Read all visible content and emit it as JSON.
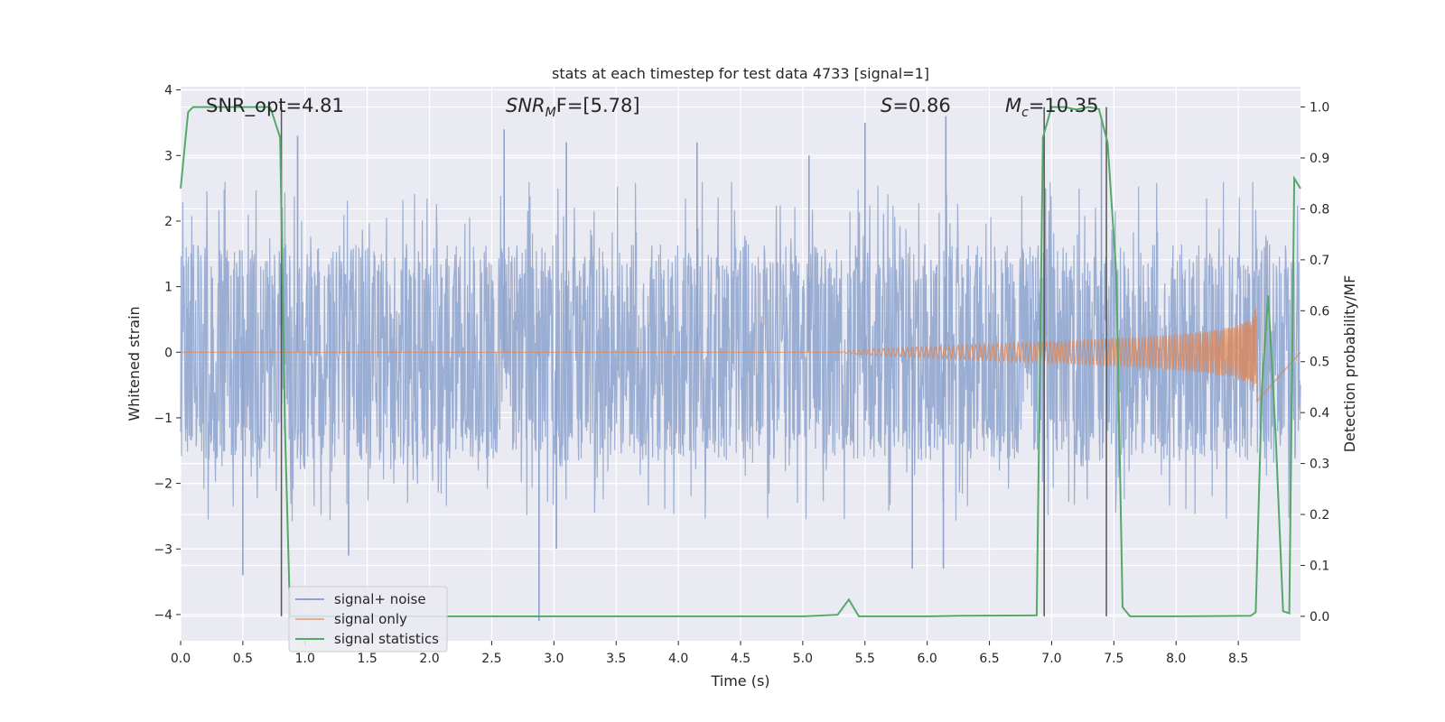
{
  "chart_data": {
    "type": "line",
    "title": "stats at each timestep for test data 4733 [signal=1]",
    "xlabel": "Time (s)",
    "ylabel": "Whitened strain",
    "y2label": "Detection probability/MF",
    "xlim": [
      0,
      9.0
    ],
    "ylim": [
      -4.4,
      4.05
    ],
    "y2lim": [
      -0.048,
      1.04
    ],
    "x_ticks": [
      "0.0",
      "0.5",
      "1.0",
      "1.5",
      "2.0",
      "2.5",
      "3.0",
      "3.5",
      "4.0",
      "4.5",
      "5.0",
      "5.5",
      "6.0",
      "6.5",
      "7.0",
      "7.5",
      "8.0",
      "8.5"
    ],
    "y_ticks": [
      "4",
      "3",
      "2",
      "1",
      "0",
      "−1",
      "−2",
      "−3",
      "−4"
    ],
    "y2_ticks": [
      "1.0",
      "0.9",
      "0.8",
      "0.7",
      "0.6",
      "0.5",
      "0.4",
      "0.3",
      "0.2",
      "0.1",
      "0.0"
    ],
    "grid": true,
    "legend_position": "lower-left",
    "annotations": {
      "snr_opt": "SNR_opt=4.81",
      "snr_mf_main": "SNR",
      "snr_mf_sub": "M",
      "snr_mf_rest": "F=[5.78]",
      "s_var": "S",
      "s_rest": "=0.86",
      "mc_var": "M",
      "mc_sub": "c",
      "mc_rest": "=10.35"
    },
    "vertical_lines_x": [
      0.81,
      6.94,
      7.44
    ],
    "series": [
      {
        "name": "signal+ noise",
        "color": "#8ca2cd",
        "axis": "left",
        "noise_envelope": {
          "typical_high": 1.5,
          "typical_low": -1.6,
          "spikes": [
            [
              0.5,
              -3.4
            ],
            [
              0.94,
              3.3
            ],
            [
              1.35,
              -3.1
            ],
            [
              2.88,
              -4.1
            ],
            [
              3.02,
              -3.0
            ],
            [
              5.88,
              -3.3
            ],
            [
              6.13,
              -3.3
            ],
            [
              6.15,
              3.6
            ],
            [
              7.4,
              3.6
            ],
            [
              2.6,
              3.4
            ],
            [
              3.1,
              3.2
            ],
            [
              4.15,
              3.2
            ],
            [
              5.05,
              3.0
            ],
            [
              5.5,
              3.5
            ],
            [
              6.95,
              2.5
            ]
          ]
        }
      },
      {
        "name": "signal only",
        "color": "#dd8452",
        "axis": "left",
        "chirp": {
          "start_x": 5.3,
          "end_x": 8.65,
          "max_amplitude": 0.75
        }
      },
      {
        "name": "signal statistics",
        "color": "#55a868",
        "axis": "right",
        "x": [
          0.0,
          0.06,
          0.1,
          0.25,
          0.6,
          0.72,
          0.8,
          0.84,
          0.88,
          5.0,
          5.28,
          5.37,
          5.45,
          6.0,
          6.25,
          6.88,
          6.93,
          7.0,
          7.1,
          7.2,
          7.3,
          7.38,
          7.45,
          7.52,
          7.57,
          7.63,
          8.0,
          8.6,
          8.64,
          8.69,
          8.74,
          8.8,
          8.86,
          8.91,
          8.95,
          9.0
        ],
        "values": [
          0.84,
          0.99,
          1.0,
          1.0,
          1.0,
          1.0,
          0.94,
          0.36,
          0.0,
          0.0,
          0.003,
          0.033,
          0.0,
          0.0,
          0.001,
          0.002,
          0.94,
          1.0,
          1.0,
          0.995,
          1.0,
          0.996,
          0.93,
          0.67,
          0.018,
          0.0,
          0.0,
          0.001,
          0.008,
          0.45,
          0.63,
          0.36,
          0.01,
          0.006,
          0.86,
          0.84
        ]
      }
    ]
  }
}
